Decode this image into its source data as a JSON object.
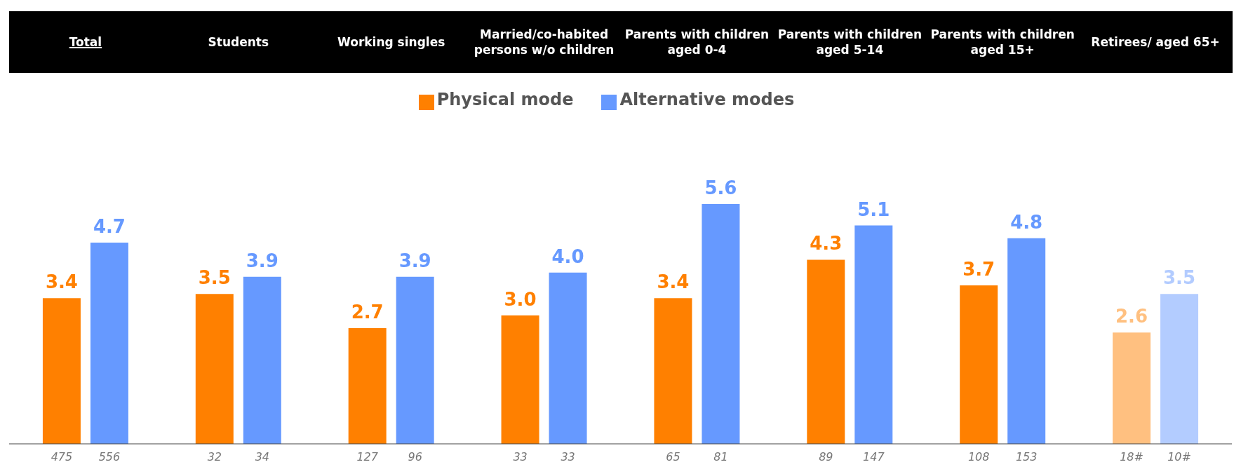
{
  "chart_data": {
    "type": "bar",
    "categories": [
      "Total",
      "Students",
      "Working singles",
      "Married/co-habited persons w/o children",
      "Parents with children aged 0-4",
      "Parents with children aged 5-14",
      "Parents with children aged 15+",
      "Retirees/ aged 65+"
    ],
    "series": [
      {
        "name": "Physical mode",
        "color": "#ff8000",
        "colors": [
          "#ff8000",
          "#ff8000",
          "#ff8000",
          "#ff8000",
          "#ff8000",
          "#ff8000",
          "#ff8000",
          "#ffc080"
        ],
        "values": [
          3.4,
          3.5,
          2.7,
          3.0,
          3.4,
          4.3,
          3.7,
          2.6
        ],
        "value_labels": [
          "3.4",
          "3.5",
          "2.7",
          "3.0",
          "3.4",
          "4.3",
          "3.7",
          "2.6"
        ]
      },
      {
        "name": "Alternative modes",
        "color": "#6699ff",
        "colors": [
          "#6699ff",
          "#6699ff",
          "#6699ff",
          "#6699ff",
          "#6699ff",
          "#6699ff",
          "#6699ff",
          "#b3ccff"
        ],
        "values": [
          4.7,
          3.9,
          3.9,
          4.0,
          5.6,
          5.1,
          4.8,
          3.5
        ],
        "value_labels": [
          "4.7",
          "3.9",
          "3.9",
          "4.0",
          "5.6",
          "5.1",
          "4.8",
          "3.5"
        ]
      }
    ],
    "legend": "top",
    "grid": false,
    "annotations": [
      "475",
      "556",
      "32",
      "34",
      "127",
      "96",
      "33",
      "33",
      "65",
      "81",
      "89",
      "147",
      "108",
      "153",
      "18#",
      "10#"
    ]
  }
}
